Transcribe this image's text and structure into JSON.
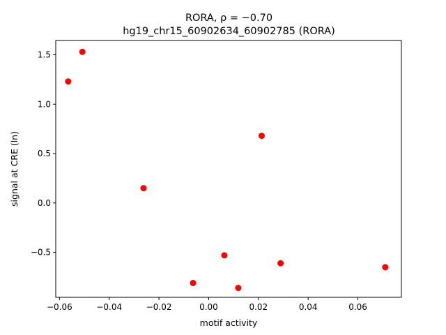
{
  "chart_data": {
    "type": "scatter",
    "title_line1": "RORA, ρ = −0.70",
    "title_line2": "hg19_chr15_60902634_60902785 (RORA)",
    "xlabel": "motif activity",
    "ylabel": "signal at CRE (ln)",
    "xlim": [
      -0.0615,
      0.0775
    ],
    "ylim": [
      -0.955,
      1.645
    ],
    "xticks": [
      -0.06,
      -0.04,
      -0.02,
      0.0,
      0.02,
      0.04,
      0.06
    ],
    "xtick_labels": [
      "−0.06",
      "−0.04",
      "−0.02",
      "0.00",
      "0.02",
      "0.04",
      "0.06"
    ],
    "yticks": [
      -0.5,
      0.0,
      0.5,
      1.0,
      1.5
    ],
    "ytick_labels": [
      "−0.5",
      "0.0",
      "0.5",
      "1.0",
      "1.5"
    ],
    "grid": false,
    "point_color": "#ff0000",
    "points": [
      {
        "x": -0.0565,
        "y": 1.23
      },
      {
        "x": -0.0508,
        "y": 1.53
      },
      {
        "x": -0.0262,
        "y": 0.15
      },
      {
        "x": -0.0063,
        "y": -0.81
      },
      {
        "x": 0.0063,
        "y": -0.53
      },
      {
        "x": 0.0119,
        "y": -0.86
      },
      {
        "x": 0.0213,
        "y": 0.68
      },
      {
        "x": 0.0289,
        "y": -0.61
      },
      {
        "x": 0.071,
        "y": -0.65
      }
    ]
  }
}
